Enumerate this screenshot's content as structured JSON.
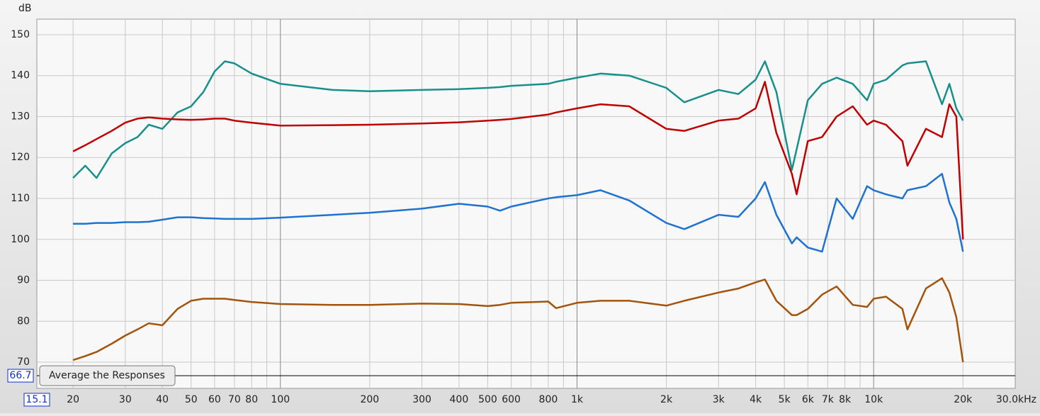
{
  "chart_data": {
    "type": "line",
    "y_label": "dB",
    "button": "Average the Responses",
    "y_cursor": 66.7,
    "xscale": "log",
    "grid": true,
    "xlim": [
      15.1,
      30000
    ],
    "ylim": [
      63.6,
      153.8
    ],
    "yticks": [
      70,
      80,
      90,
      100,
      110,
      120,
      130,
      140,
      150
    ],
    "xticks": [
      20,
      30,
      40,
      50,
      60,
      70,
      80,
      100,
      200,
      300,
      400,
      500,
      600,
      800,
      {
        "value": 1000,
        "label": "1k"
      },
      {
        "value": 2000,
        "label": "2k"
      },
      {
        "value": 3000,
        "label": "3k"
      },
      {
        "value": 4000,
        "label": "4k"
      },
      {
        "value": 5000,
        "label": "5k"
      },
      {
        "value": 6000,
        "label": "6k"
      },
      {
        "value": 7000,
        "label": "7k"
      },
      {
        "value": 8000,
        "label": "8k"
      },
      {
        "value": 10000,
        "label": "10k"
      },
      {
        "value": 20000,
        "label": "20k"
      },
      {
        "value": 30000,
        "label": "30.0kHz"
      }
    ],
    "xminor": [
      90,
      700,
      900,
      9000
    ],
    "x": [
      20,
      22,
      24,
      27,
      30,
      33,
      36,
      40,
      45,
      50,
      55,
      60,
      65,
      70,
      80,
      100,
      150,
      200,
      300,
      400,
      500,
      550,
      600,
      800,
      850,
      1000,
      1200,
      1500,
      2000,
      2300,
      3000,
      3500,
      4000,
      4300,
      4700,
      5300,
      5500,
      6000,
      6700,
      7500,
      8500,
      9500,
      10000,
      11000,
      12500,
      13000,
      15000,
      17000,
      18000,
      19000,
      20000
    ],
    "series": [
      {
        "color": "#17908c",
        "values": [
          115,
          118,
          115,
          121,
          123.5,
          125,
          128,
          127,
          131,
          132.5,
          136,
          141,
          143.5,
          143,
          140.5,
          138,
          136.5,
          136.2,
          136.5,
          136.7,
          137,
          137.2,
          137.5,
          138,
          138.5,
          139.5,
          140.5,
          140,
          137,
          133.5,
          136.5,
          135.5,
          139,
          143.5,
          136,
          117,
          122,
          134,
          138,
          139.5,
          138,
          134,
          138,
          139,
          142.5,
          143,
          143.5,
          133,
          138,
          132,
          129
        ]
      },
      {
        "color": "#c00000",
        "values": [
          121.5,
          123,
          124.5,
          126.5,
          128.5,
          129.5,
          129.8,
          129.5,
          129.3,
          129.2,
          129.3,
          129.5,
          129.5,
          129,
          128.5,
          127.8,
          127.9,
          128,
          128.3,
          128.6,
          129,
          129.2,
          129.4,
          130.5,
          131,
          132,
          133,
          132.5,
          127,
          126.5,
          129,
          129.5,
          132,
          138.5,
          126,
          116,
          111,
          124,
          125,
          130,
          132.5,
          128,
          129,
          128,
          124,
          118,
          127,
          125,
          133,
          130,
          100
        ]
      },
      {
        "color": "#1f72cf",
        "values": [
          103.8,
          103.8,
          104,
          104,
          104.2,
          104.2,
          104.3,
          104.8,
          105.4,
          105.4,
          105.2,
          105.1,
          105,
          105,
          105,
          105.3,
          106,
          106.5,
          107.5,
          108.7,
          108,
          107,
          108,
          110,
          110.3,
          110.8,
          112,
          109.5,
          104,
          102.5,
          106,
          105.5,
          110,
          114,
          106,
          99,
          100.5,
          98,
          97,
          110,
          105,
          113,
          112,
          111,
          110,
          112,
          113,
          116,
          109,
          105,
          97
        ]
      },
      {
        "color": "#a3540c",
        "values": [
          70.5,
          71.5,
          72.5,
          74.5,
          76.5,
          78,
          79.5,
          79,
          83,
          85,
          85.5,
          85.5,
          85.5,
          85.2,
          84.7,
          84.2,
          84,
          84,
          84.3,
          84.2,
          83.7,
          84,
          84.5,
          84.8,
          83.2,
          84.5,
          85,
          85,
          83.8,
          85,
          87,
          88,
          89.5,
          90.2,
          85,
          81.5,
          81.5,
          83,
          86.5,
          88.5,
          84,
          83.5,
          85.5,
          86,
          83,
          78,
          88,
          90.5,
          87,
          81,
          70
        ]
      }
    ]
  }
}
